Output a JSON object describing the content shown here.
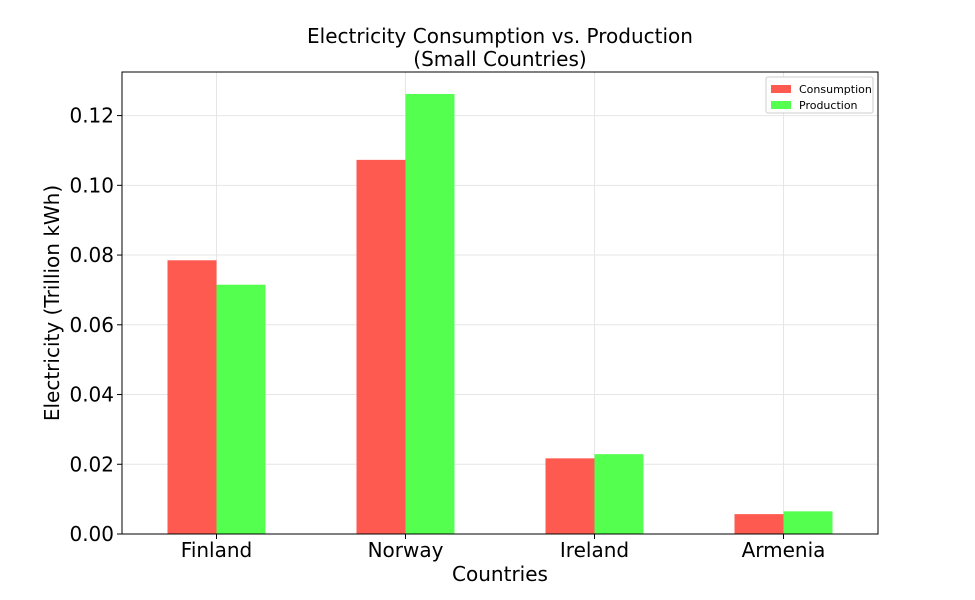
{
  "chart_data": {
    "type": "bar",
    "title": "Electricity Consumption vs. Production",
    "subtitle": "(Small Countries)",
    "xlabel": "Countries",
    "ylabel": "Electricity (Trillion kWh)",
    "categories": [
      "Finland",
      "Norway",
      "Ireland",
      "Armenia"
    ],
    "series": [
      {
        "name": "Consumption",
        "color": "#ff5a50",
        "values": [
          0.0785,
          0.1073,
          0.0217,
          0.0057
        ]
      },
      {
        "name": "Production",
        "color": "#55ff50",
        "values": [
          0.0715,
          0.1262,
          0.0229,
          0.0065
        ]
      }
    ],
    "ylim": [
      0,
      0.1325
    ],
    "yticks": [
      0.0,
      0.02,
      0.04,
      0.06,
      0.08,
      0.1,
      0.12
    ],
    "ytick_labels": [
      "0.00",
      "0.02",
      "0.04",
      "0.06",
      "0.08",
      "0.10",
      "0.12"
    ],
    "grid": true,
    "legend_position": "top-right"
  }
}
